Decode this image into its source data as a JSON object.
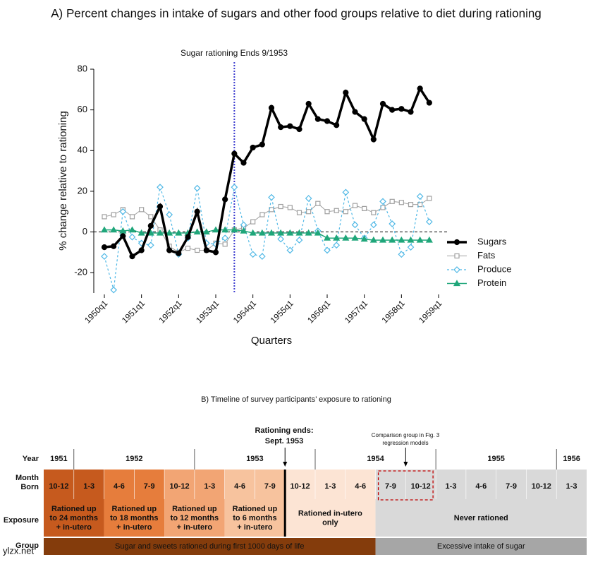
{
  "chart_data": {
    "type": "line",
    "title": "A) Percent changes in intake of sugars and other food groups relative to diet during rationing",
    "ylabel": "% change relative to rationing",
    "xlabel": "Quarters",
    "annotation": "Sugar rationing Ends 9/1953",
    "vline_x": 1953.5,
    "x": [
      1950,
      1950.25,
      1950.5,
      1950.75,
      1951,
      1951.25,
      1951.5,
      1951.75,
      1952,
      1952.25,
      1952.5,
      1952.75,
      1953,
      1953.25,
      1953.5,
      1953.75,
      1954,
      1954.25,
      1954.5,
      1954.75,
      1955,
      1955.25,
      1955.5,
      1955.75,
      1956,
      1956.25,
      1956.5,
      1956.75,
      1957,
      1957.25,
      1957.5,
      1957.75,
      1958,
      1958.25,
      1958.5,
      1958.75
    ],
    "xlim": [
      1950,
      1959
    ],
    "xticks": [
      {
        "value": 1950,
        "label": "1950q1"
      },
      {
        "value": 1951,
        "label": "1951q1"
      },
      {
        "value": 1952,
        "label": "1952q1"
      },
      {
        "value": 1953,
        "label": "1953q1"
      },
      {
        "value": 1954,
        "label": "1954q1"
      },
      {
        "value": 1955,
        "label": "1955q1"
      },
      {
        "value": 1956,
        "label": "1956q1"
      },
      {
        "value": 1957,
        "label": "1957q1"
      },
      {
        "value": 1958,
        "label": "1958q1"
      },
      {
        "value": 1959,
        "label": "1959q1"
      }
    ],
    "ylim": [
      -30,
      80
    ],
    "yticks": [
      -20,
      0,
      20,
      40,
      60,
      80
    ],
    "legend": "right",
    "series": [
      {
        "name": "Sugars",
        "color": "#000000",
        "values": [
          -7.5,
          -7,
          -2,
          -12,
          -9,
          3,
          12.5,
          -9,
          -10.5,
          -2.5,
          10,
          -9,
          -10,
          16,
          38.5,
          34,
          41.5,
          43,
          61,
          51.5,
          52,
          50.5,
          63,
          55.5,
          54.5,
          52.5,
          68.5,
          59,
          55.5,
          45.5,
          63,
          60,
          60.5,
          59,
          70.5,
          63.5
        ]
      },
      {
        "name": "Fats",
        "color": "#a0a0a0",
        "values": [
          7.5,
          8.5,
          11,
          7.5,
          11,
          7.5,
          1,
          -7,
          -10,
          -8,
          -9,
          -9,
          -5.5,
          -6,
          1,
          2,
          5,
          8.5,
          11,
          12.5,
          12,
          9.5,
          10,
          14,
          10,
          10.5,
          10,
          13,
          11.5,
          9.5,
          12,
          15,
          14.5,
          13.5,
          13.5,
          16.5
        ]
      },
      {
        "name": "Produce",
        "color": "#4fb8e6",
        "values": [
          -12,
          -28.5,
          10,
          -2.5,
          -5.5,
          -6.5,
          22,
          8.5,
          -11,
          -3,
          21.5,
          -5.5,
          -6,
          -3,
          22,
          3.5,
          -11,
          -12,
          17,
          -3.5,
          -9,
          -4,
          16.5,
          0.5,
          -9,
          -6.5,
          19.5,
          3.5,
          -3,
          3.5,
          15,
          4,
          -11,
          -7.5,
          17.5,
          5
        ]
      },
      {
        "name": "Protein",
        "color": "#1fa67a",
        "values": [
          1,
          1,
          0.5,
          1,
          -0.5,
          -0.5,
          -0.5,
          -0.5,
          -0.5,
          -0.5,
          0,
          0,
          1,
          1,
          1,
          0.5,
          -0.5,
          -0.5,
          -0.5,
          -0.5,
          -0.5,
          -0.5,
          -0.5,
          -0.5,
          -3,
          -3,
          -3,
          -3,
          -3.5,
          -4,
          -4,
          -4,
          -4,
          -4,
          -4,
          -4
        ]
      }
    ]
  },
  "timeline": {
    "title": "B) Timeline of survey participants’ exposure to rationing",
    "rationing_ends": [
      "Rationing ends:",
      "Sept. 1953"
    ],
    "comparison": [
      "Comparison group in Fig. 3",
      "regression models"
    ],
    "row_labels": {
      "year": "Year",
      "month": [
        "Month",
        "Born"
      ],
      "exposure": "Exposure",
      "group": "Group"
    },
    "years": [
      {
        "label": "1951",
        "span": 1
      },
      {
        "label": "1952",
        "span": 4
      },
      {
        "label": "1953",
        "span": 4
      },
      {
        "label": "1954",
        "span": 4
      },
      {
        "label": "1955",
        "span": 4
      },
      {
        "label": "1956",
        "span": 1
      }
    ],
    "months": [
      "10-12",
      "1-3",
      "4-6",
      "7-9",
      "10-12",
      "1-3",
      "4-6",
      "7-9",
      "10-12",
      "1-3",
      "4-6",
      "7-9",
      "10-12",
      "1-3",
      "4-6",
      "7-9",
      "10-12",
      "1-3"
    ],
    "exposure": [
      {
        "label": [
          "Rationed up",
          "to 24 months",
          "+ in-utero"
        ],
        "span": 2,
        "color": "#c65a1e"
      },
      {
        "label": [
          "Rationed up",
          "to 18 months",
          "+ in-utero"
        ],
        "span": 2,
        "color": "#e67d3c"
      },
      {
        "label": [
          "Rationed up",
          "to 12 months",
          "+ in-utero"
        ],
        "span": 2,
        "color": "#f2a574"
      },
      {
        "label": [
          "Rationed up",
          "to 6 months",
          "+ in-utero"
        ],
        "span": 2,
        "color": "#f7c39e"
      },
      {
        "label": [
          "Rationed in-utero",
          "only"
        ],
        "span": 3,
        "color": "#fce4d4"
      },
      {
        "label": [
          "Never rationed"
        ],
        "span": 7,
        "color": "#d9d9d9"
      }
    ],
    "groups": [
      {
        "label": "Sugar and sweets rationed during first 1000 days of life",
        "span": 11,
        "color": "#843c0c",
        "text_color": "#ffffff"
      },
      {
        "label": "Excessive intake of sugar",
        "span": 7,
        "color": "#a6a6a6",
        "text_color": "#222222"
      }
    ],
    "watermark": "ylzx.net"
  }
}
